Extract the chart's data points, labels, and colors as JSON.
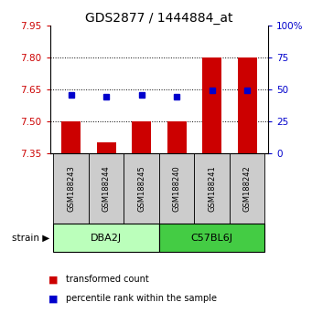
{
  "title": "GDS2877 / 1444884_at",
  "samples": [
    "GSM188243",
    "GSM188244",
    "GSM188245",
    "GSM188240",
    "GSM188241",
    "GSM188242"
  ],
  "red_bar_values": [
    7.5,
    7.4,
    7.5,
    7.5,
    7.8,
    7.8
  ],
  "blue_dot_values": [
    7.625,
    7.615,
    7.625,
    7.615,
    7.645,
    7.645
  ],
  "ylim_left": [
    7.35,
    7.95
  ],
  "ylim_right": [
    0,
    100
  ],
  "yticks_left": [
    7.35,
    7.5,
    7.65,
    7.8,
    7.95
  ],
  "yticks_right": [
    0,
    25,
    50,
    75,
    100
  ],
  "ytick_labels_right": [
    "0",
    "25",
    "50",
    "75",
    "100%"
  ],
  "dotted_lines": [
    7.5,
    7.65,
    7.8
  ],
  "bar_bottom": 7.35,
  "strains": [
    {
      "label": "DBA2J",
      "indices": [
        0,
        1,
        2
      ],
      "color": "#bbffbb"
    },
    {
      "label": "C57BL6J",
      "indices": [
        3,
        4,
        5
      ],
      "color": "#44cc44"
    }
  ],
  "bar_color": "#cc0000",
  "dot_color": "#0000cc",
  "left_tick_color": "#cc0000",
  "right_tick_color": "#0000cc",
  "title_fontsize": 10,
  "axis_fontsize": 7.5,
  "bar_width": 0.55,
  "sample_box_color": "#cccccc",
  "fig_width": 3.41,
  "fig_height": 3.54,
  "dpi": 100
}
